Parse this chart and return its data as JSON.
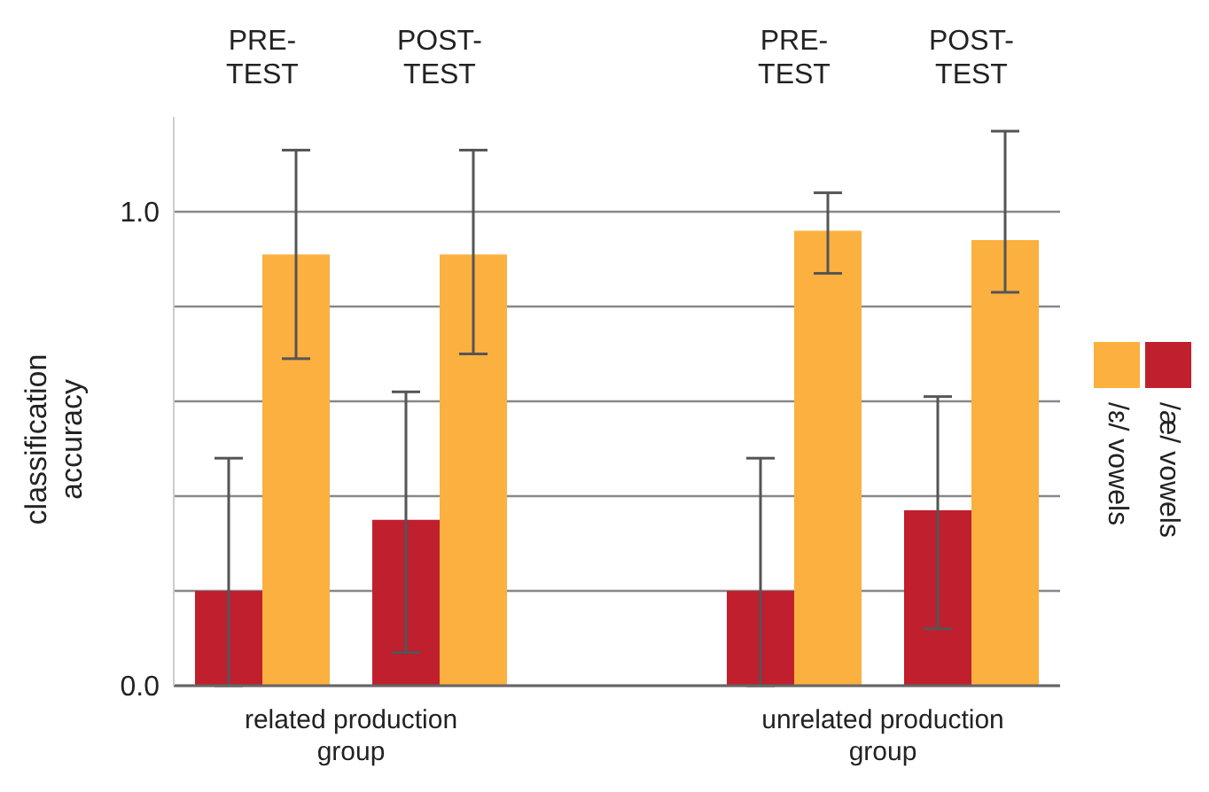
{
  "chart_data": {
    "type": "bar",
    "ylabel": "classification accuracy",
    "categories": [
      "PRE-TEST",
      "POST-TEST",
      null,
      "PRE-TEST",
      "POST-TEST"
    ],
    "series": [
      {
        "name": "/æ/ vowels",
        "color": "#c01f2e",
        "values": [
          0.2,
          0.35,
          null,
          0.2,
          0.37
        ],
        "errors": [
          [
            0,
            0.48
          ],
          [
            0.07,
            0.62
          ],
          null,
          [
            0,
            0.48
          ],
          [
            0.12,
            0.61
          ]
        ]
      },
      {
        "name": "/ɛ/ vowels",
        "color": "#fbb040",
        "values": [
          0.91,
          0.91,
          null,
          0.96,
          0.94
        ],
        "errors": [
          [
            0.69,
            1.13
          ],
          [
            0.7,
            1.13
          ],
          null,
          [
            0.87,
            1.04
          ],
          [
            0.83,
            1.17
          ]
        ]
      }
    ],
    "ylim": [
      0,
      1.2
    ],
    "yticks": [
      {
        "value": 0,
        "label": "0.0"
      },
      {
        "value": 0.2,
        "label": null
      },
      {
        "value": 0.4,
        "label": null
      },
      {
        "value": 0.6,
        "label": null
      },
      {
        "value": 0.8,
        "label": null
      },
      {
        "value": 1,
        "label": "1.0"
      }
    ],
    "grid": "y",
    "legend": "right",
    "annotations": [
      "related production group",
      "unrelated production group"
    ]
  }
}
